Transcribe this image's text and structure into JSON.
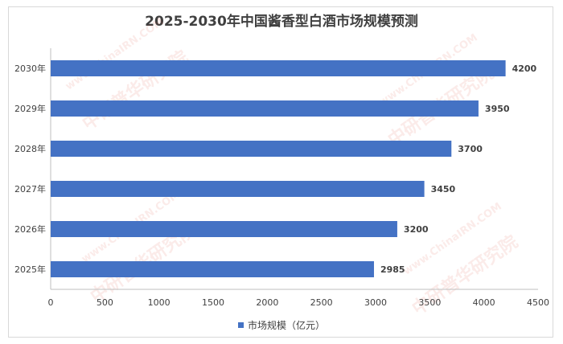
{
  "chart_data": {
    "type": "bar",
    "orientation": "horizontal",
    "title": "2025-2030年中国酱香型白酒市场规模预测",
    "categories": [
      "2030年",
      "2029年",
      "2028年",
      "2027年",
      "2026年",
      "2025年"
    ],
    "series": [
      {
        "name": "市场规模（亿元）",
        "values": [
          4200,
          3950,
          3700,
          3450,
          3200,
          2985
        ]
      }
    ],
    "x_ticks": [
      "0",
      "500",
      "1000",
      "1500",
      "2000",
      "2500",
      "3000",
      "3500",
      "4000",
      "4500"
    ],
    "xlim": [
      0,
      4500
    ],
    "grid": false,
    "legend_position": "bottom",
    "colors": {
      "bar": "#4472C4",
      "text": "#404040",
      "axis": "#bfbfbf"
    }
  },
  "watermark": {
    "text": "中研普华研究院",
    "url": "www.ChinaIRN.COM"
  }
}
